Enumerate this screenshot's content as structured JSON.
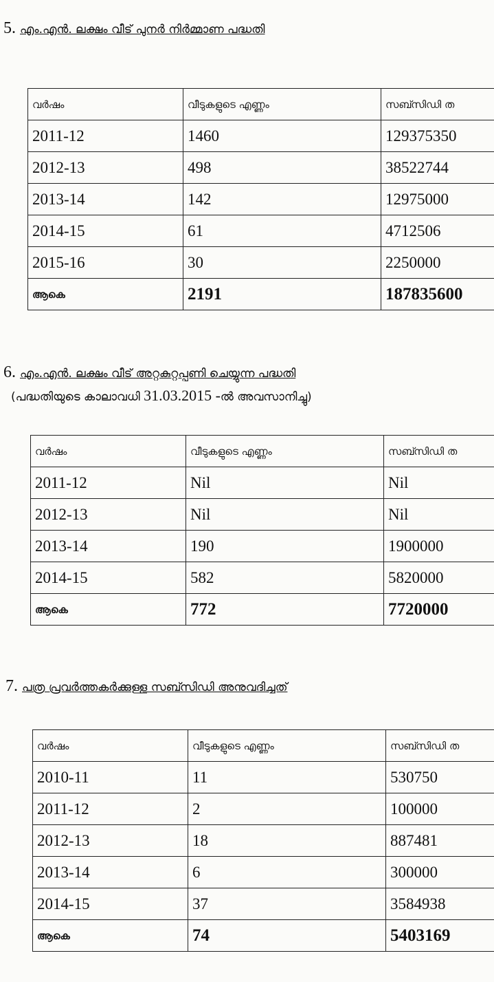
{
  "sections": [
    {
      "number": "5.",
      "title": "എം.എൻ. ലക്ഷം വീട് പുനർ നിർമ്മാണ പദ്ധതി",
      "headers": [
        "വർഷം",
        "വീടുകളുടെ എണ്ണം",
        "സബ്സിഡി ത"
      ],
      "rows": [
        [
          "2011-12",
          "1460",
          "129375350"
        ],
        [
          "2012-13",
          "498",
          "38522744"
        ],
        [
          "2013-14",
          "142",
          "12975000"
        ],
        [
          "2014-15",
          "61",
          "4712506"
        ],
        [
          "2015-16",
          "30",
          "2250000"
        ]
      ],
      "total": [
        "ആകെ",
        "2191",
        "187835600"
      ]
    },
    {
      "number": "6.",
      "title": "എം.എൻ. ലക്ഷം വീട് അറ്റകുറ്റപ്പണി ചെയ്യുന്ന പദ്ധതി",
      "subtitle_pre": "(പദ്ധതിയുടെ കാലാവധി ",
      "subtitle_date": "31.03.2015 -",
      "subtitle_post": "ൽ അവസാനിച്ചു)",
      "headers": [
        "വർഷം",
        "വീടുകളുടെ എണ്ണം",
        "സബ്സിഡി ത"
      ],
      "rows": [
        [
          "2011-12",
          "Nil",
          "Nil"
        ],
        [
          "2012-13",
          "Nil",
          "Nil"
        ],
        [
          "2013-14",
          "190",
          "1900000"
        ],
        [
          "2014-15",
          "582",
          "5820000"
        ]
      ],
      "total": [
        "ആകെ",
        "772",
        "7720000"
      ]
    },
    {
      "number": "7.",
      "title": "പത്ര പ്രവർത്തകർക്കുള്ള സബ്സിഡി അനുവദിച്ചത്",
      "headers": [
        "വർഷം",
        "വീടുകളുടെ എണ്ണം",
        "സബ്സിഡി ത"
      ],
      "rows": [
        [
          "2010-11",
          "11",
          "530750"
        ],
        [
          "2011-12",
          "2",
          "100000"
        ],
        [
          "2012-13",
          "18",
          "887481"
        ],
        [
          "2013-14",
          "6",
          "300000"
        ],
        [
          "2014-15",
          "37",
          "3584938"
        ]
      ],
      "total": [
        "ആകെ",
        "74",
        "5403169"
      ]
    }
  ]
}
